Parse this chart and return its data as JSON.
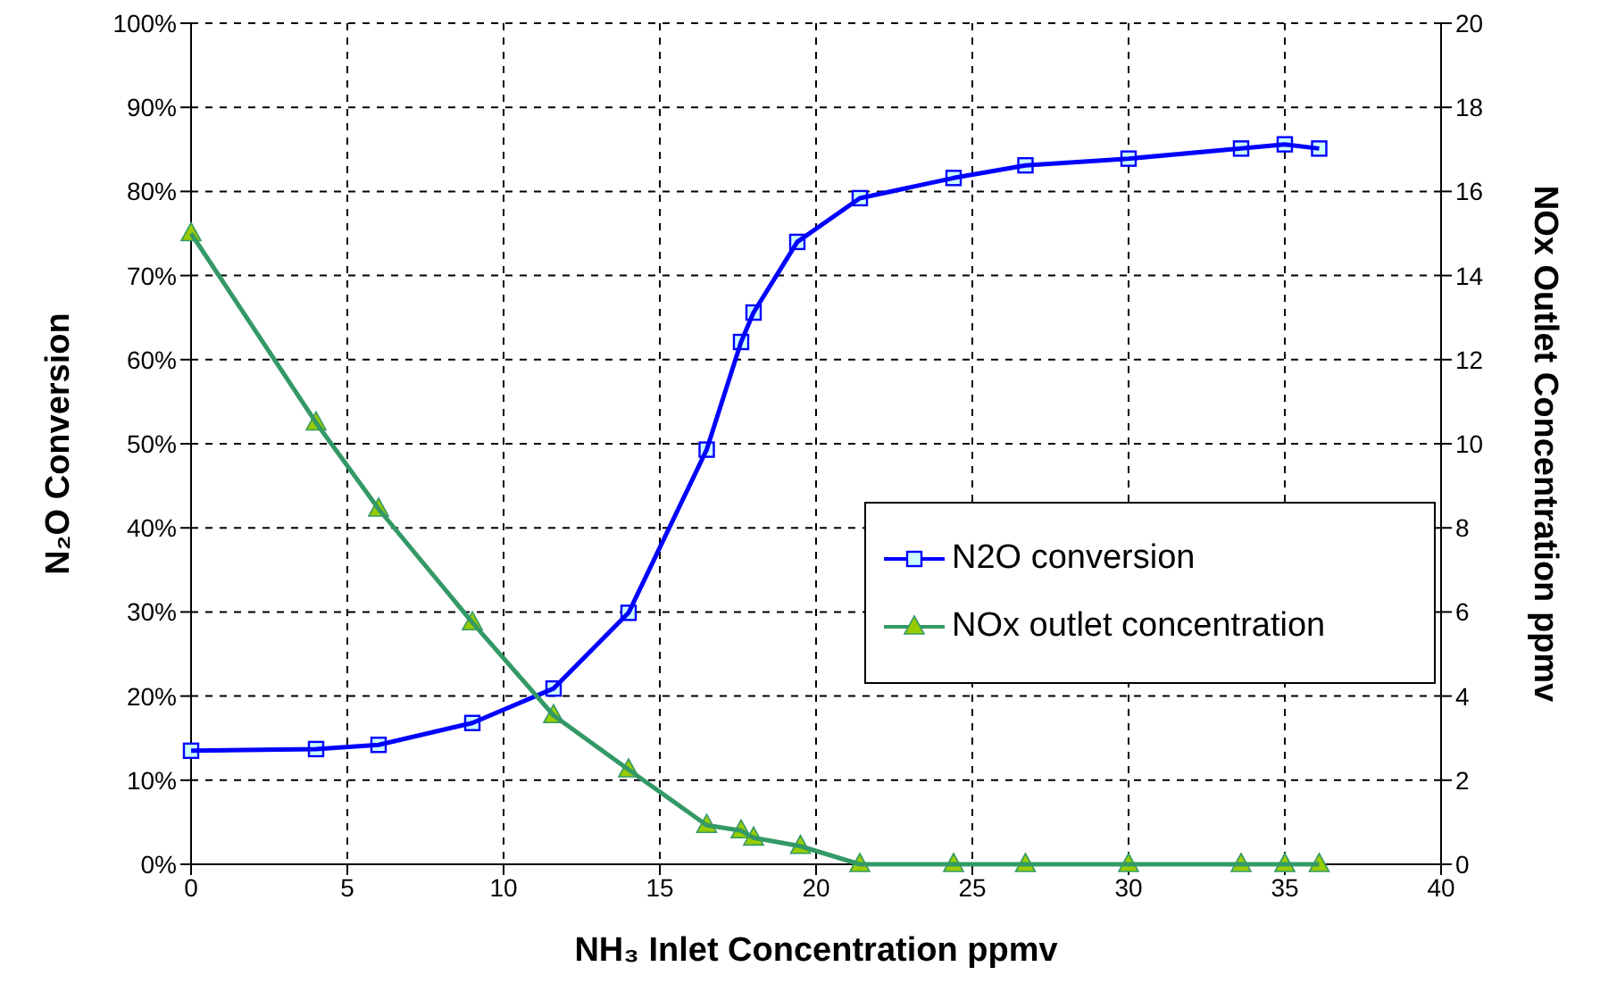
{
  "chart_data": {
    "type": "line",
    "xlabel": "NH₃ Inlet Concentration ppmv",
    "ylabel": "N₂O Conversion",
    "y2label": "NOx Outlet Concentration ppmv",
    "xlim": [
      0,
      40
    ],
    "xticks": [
      0,
      5,
      10,
      15,
      20,
      25,
      30,
      35,
      40
    ],
    "ylim": [
      0,
      100
    ],
    "yticks": [
      {
        "value": 0,
        "label": "0%"
      },
      {
        "value": 10,
        "label": "10%"
      },
      {
        "value": 20,
        "label": "20%"
      },
      {
        "value": 30,
        "label": "30%"
      },
      {
        "value": 40,
        "label": "40%"
      },
      {
        "value": 50,
        "label": "50%"
      },
      {
        "value": 60,
        "label": "60%"
      },
      {
        "value": 70,
        "label": "70%"
      },
      {
        "value": 80,
        "label": "80%"
      },
      {
        "value": 90,
        "label": "90%"
      },
      {
        "value": 100,
        "label": "100%"
      }
    ],
    "y2lim": [
      0,
      20
    ],
    "y2ticks": [
      0,
      2,
      4,
      6,
      8,
      10,
      12,
      14,
      16,
      18,
      20
    ],
    "grid": true,
    "legend": "right",
    "line_style": "solid",
    "series": [
      {
        "name": "N2O conversion",
        "color": "#0000ff",
        "marker": "square",
        "x": [
          0,
          4,
          6,
          9,
          11.6,
          14,
          16.5,
          17.6,
          18,
          19.4,
          21.4,
          24.4,
          26.7,
          30,
          33.6,
          35,
          36.1
        ],
        "values": [
          13.5,
          13.7,
          14.2,
          16.8,
          20.9,
          29.9,
          49.3,
          62.1,
          65.6,
          74.0,
          79.2,
          81.6,
          83.1,
          83.9,
          85.1,
          85.6,
          85.1
        ]
      },
      {
        "name": "NOx outlet concentration",
        "color": "#339966",
        "marker": "triangle",
        "axis": "y2",
        "x": [
          0,
          4,
          6,
          9,
          11.6,
          14,
          16.5,
          17.6,
          18,
          19.5,
          21.4,
          24.4,
          26.7,
          30,
          33.6,
          35,
          36.1
        ],
        "values": [
          15,
          10.5,
          8.45,
          5.75,
          3.54,
          2.25,
          0.93,
          0.8,
          0.63,
          0.43,
          0,
          0,
          0,
          0,
          0,
          0,
          0
        ]
      }
    ]
  }
}
